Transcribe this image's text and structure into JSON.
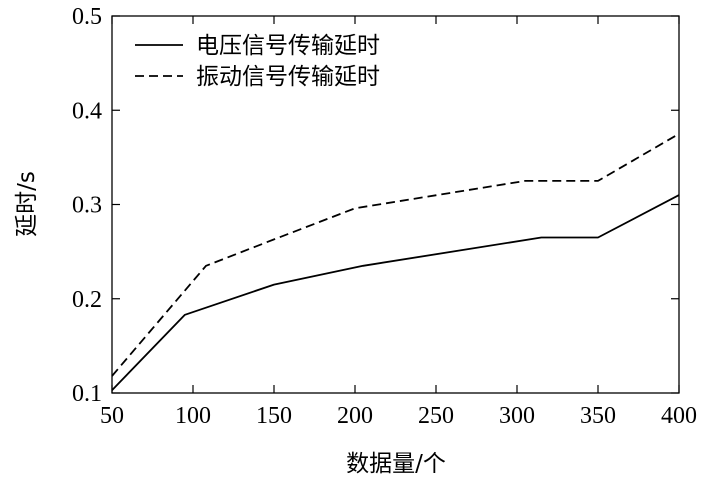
{
  "chart_data": {
    "type": "line",
    "title": "",
    "xlabel": "数据量/个",
    "ylabel": "延时/s",
    "xlim": [
      50,
      400
    ],
    "ylim": [
      0.1,
      0.5
    ],
    "xticks": [
      50,
      100,
      150,
      200,
      250,
      300,
      350,
      400
    ],
    "xtick_labels": [
      "50",
      "100",
      "150",
      "200",
      "250",
      "300",
      "350",
      "400"
    ],
    "yticks": [
      0.1,
      0.2,
      0.3,
      0.4,
      0.5
    ],
    "ytick_labels": [
      "0.1",
      "0.2",
      "0.3",
      "0.4",
      "0.5"
    ],
    "grid": false,
    "legend_position": "top-left",
    "series": [
      {
        "name": "电压信号传输延时",
        "line_style": "solid",
        "color": "#000000",
        "x": [
          50,
          95,
          150,
          205,
          315,
          350,
          400
        ],
        "y": [
          0.103,
          0.183,
          0.215,
          0.235,
          0.265,
          0.265,
          0.31
        ]
      },
      {
        "name": "振动信号传输延时",
        "line_style": "dashed",
        "color": "#000000",
        "x": [
          50,
          108,
          150,
          200,
          305,
          350,
          400
        ],
        "y": [
          0.118,
          0.235,
          0.263,
          0.296,
          0.325,
          0.325,
          0.375
        ]
      }
    ]
  }
}
